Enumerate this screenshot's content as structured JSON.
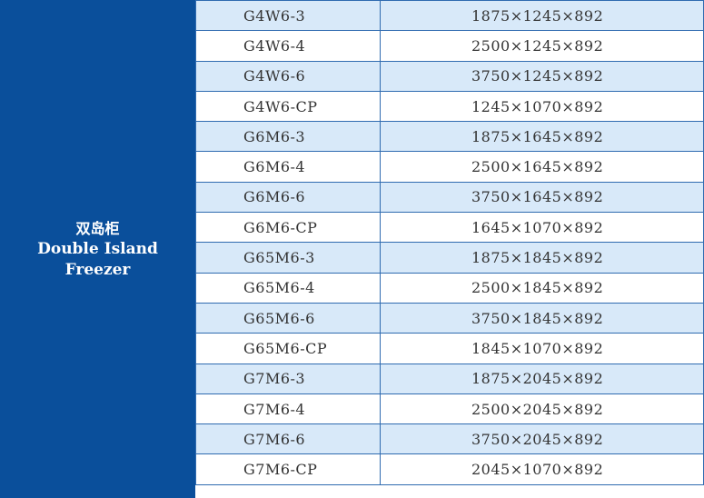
{
  "category": {
    "cn": "双岛柜",
    "en_line1": "Double Island",
    "en_line2": "Freezer"
  },
  "rows": [
    {
      "model": "G4W6-3",
      "dims": "1875×1245×892"
    },
    {
      "model": "G4W6-4",
      "dims": "2500×1245×892"
    },
    {
      "model": "G4W6-6",
      "dims": "3750×1245×892"
    },
    {
      "model": "G4W6-CP",
      "dims": "1245×1070×892"
    },
    {
      "model": "G6M6-3",
      "dims": "1875×1645×892"
    },
    {
      "model": "G6M6-4",
      "dims": "2500×1645×892"
    },
    {
      "model": "G6M6-6",
      "dims": "3750×1645×892"
    },
    {
      "model": "G6M6-CP",
      "dims": "1645×1070×892"
    },
    {
      "model": "G65M6-3",
      "dims": "1875×1845×892"
    },
    {
      "model": "G65M6-4",
      "dims": "2500×1845×892"
    },
    {
      "model": "G65M6-6",
      "dims": "3750×1845×892"
    },
    {
      "model": "G65M6-CP",
      "dims": "1845×1070×892"
    },
    {
      "model": "G7M6-3",
      "dims": "1875×2045×892"
    },
    {
      "model": "G7M6-4",
      "dims": "2500×2045×892"
    },
    {
      "model": "G7M6-6",
      "dims": "3750×2045×892"
    },
    {
      "model": "G7M6-CP",
      "dims": "2045×1070×892"
    }
  ]
}
